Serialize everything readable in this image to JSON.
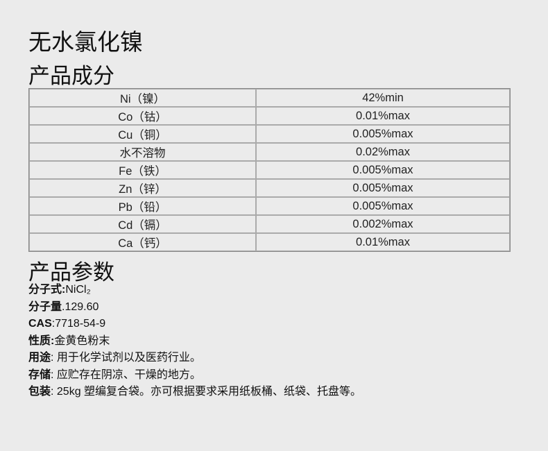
{
  "title": "无水氯化镍",
  "composition_heading": "产品成分",
  "composition": [
    {
      "item": "Ni（镍）",
      "value": "42%min"
    },
    {
      "item": "Co（钴）",
      "value": "0.01%max"
    },
    {
      "item": "Cu（铜）",
      "value": "0.005%max"
    },
    {
      "item": "水不溶物",
      "value": "0.02%max"
    },
    {
      "item": "Fe（铁）",
      "value": "0.005%max"
    },
    {
      "item": "Zn（锌）",
      "value": "0.005%max"
    },
    {
      "item": "Pb（铅）",
      "value": "0.005%max"
    },
    {
      "item": "Cd（镉）",
      "value": "0.002%max"
    },
    {
      "item": "Ca（钙）",
      "value": "0.01%max"
    }
  ],
  "params_heading": "产品参数",
  "params": [
    {
      "label": "分子式:",
      "value": "NiCl₂"
    },
    {
      "label": "分子量",
      "value": ".129.60"
    },
    {
      "label": "CAS",
      "value": ":7718-54-9"
    },
    {
      "label": "性质:",
      "value": "金黄色粉末"
    },
    {
      "label": "用途",
      "value": ": 用于化学试剂以及医药行业。"
    },
    {
      "label": "存储",
      "value": ": 应贮存在阴凉、干燥的地方。"
    },
    {
      "label": "包装",
      "value": ": 25kg 塑编复合袋。亦可根据要求采用纸板桶、纸袋、托盘等。"
    }
  ]
}
